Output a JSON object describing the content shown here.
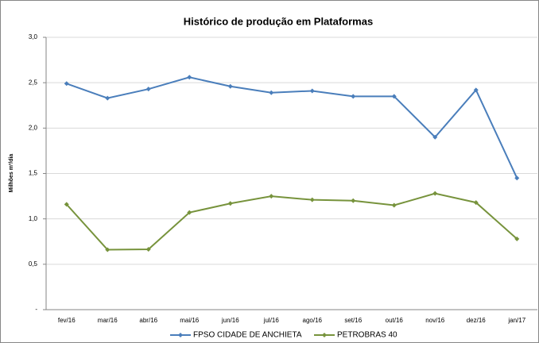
{
  "chart_data": {
    "type": "line",
    "title": "Histórico de produção em Plataformas",
    "y_label": "Milhões m³/dia",
    "categories": [
      "fev/16",
      "mar/16",
      "abr/16",
      "mai/16",
      "jun/16",
      "jul/16",
      "ago/16",
      "set/16",
      "out/16",
      "nov/16",
      "dez/16",
      "jan/17"
    ],
    "series": [
      {
        "name": "FPSO CIDADE DE ANCHIETA",
        "color": "#4a7ebb",
        "values": [
          2.49,
          2.33,
          2.43,
          2.56,
          2.46,
          2.39,
          2.41,
          2.35,
          2.35,
          1.9,
          2.42,
          1.45
        ]
      },
      {
        "name": "PETROBRAS 40",
        "color": "#77933c",
        "values": [
          1.16,
          0.66,
          0.665,
          1.07,
          1.17,
          1.25,
          1.21,
          1.2,
          1.15,
          1.28,
          1.18,
          0.78
        ]
      }
    ],
    "ylim": [
      0,
      3
    ],
    "yticks": [
      {
        "value": 0,
        "label": "-"
      },
      {
        "value": 0.5,
        "label": "0,5"
      },
      {
        "value": 1,
        "label": "1,0"
      },
      {
        "value": 1.5,
        "label": "1,5"
      },
      {
        "value": 2,
        "label": "2,0"
      },
      {
        "value": 2.5,
        "label": "2,5"
      },
      {
        "value": 3,
        "label": "3,0"
      }
    ],
    "grid": true,
    "legend": "bottom"
  }
}
